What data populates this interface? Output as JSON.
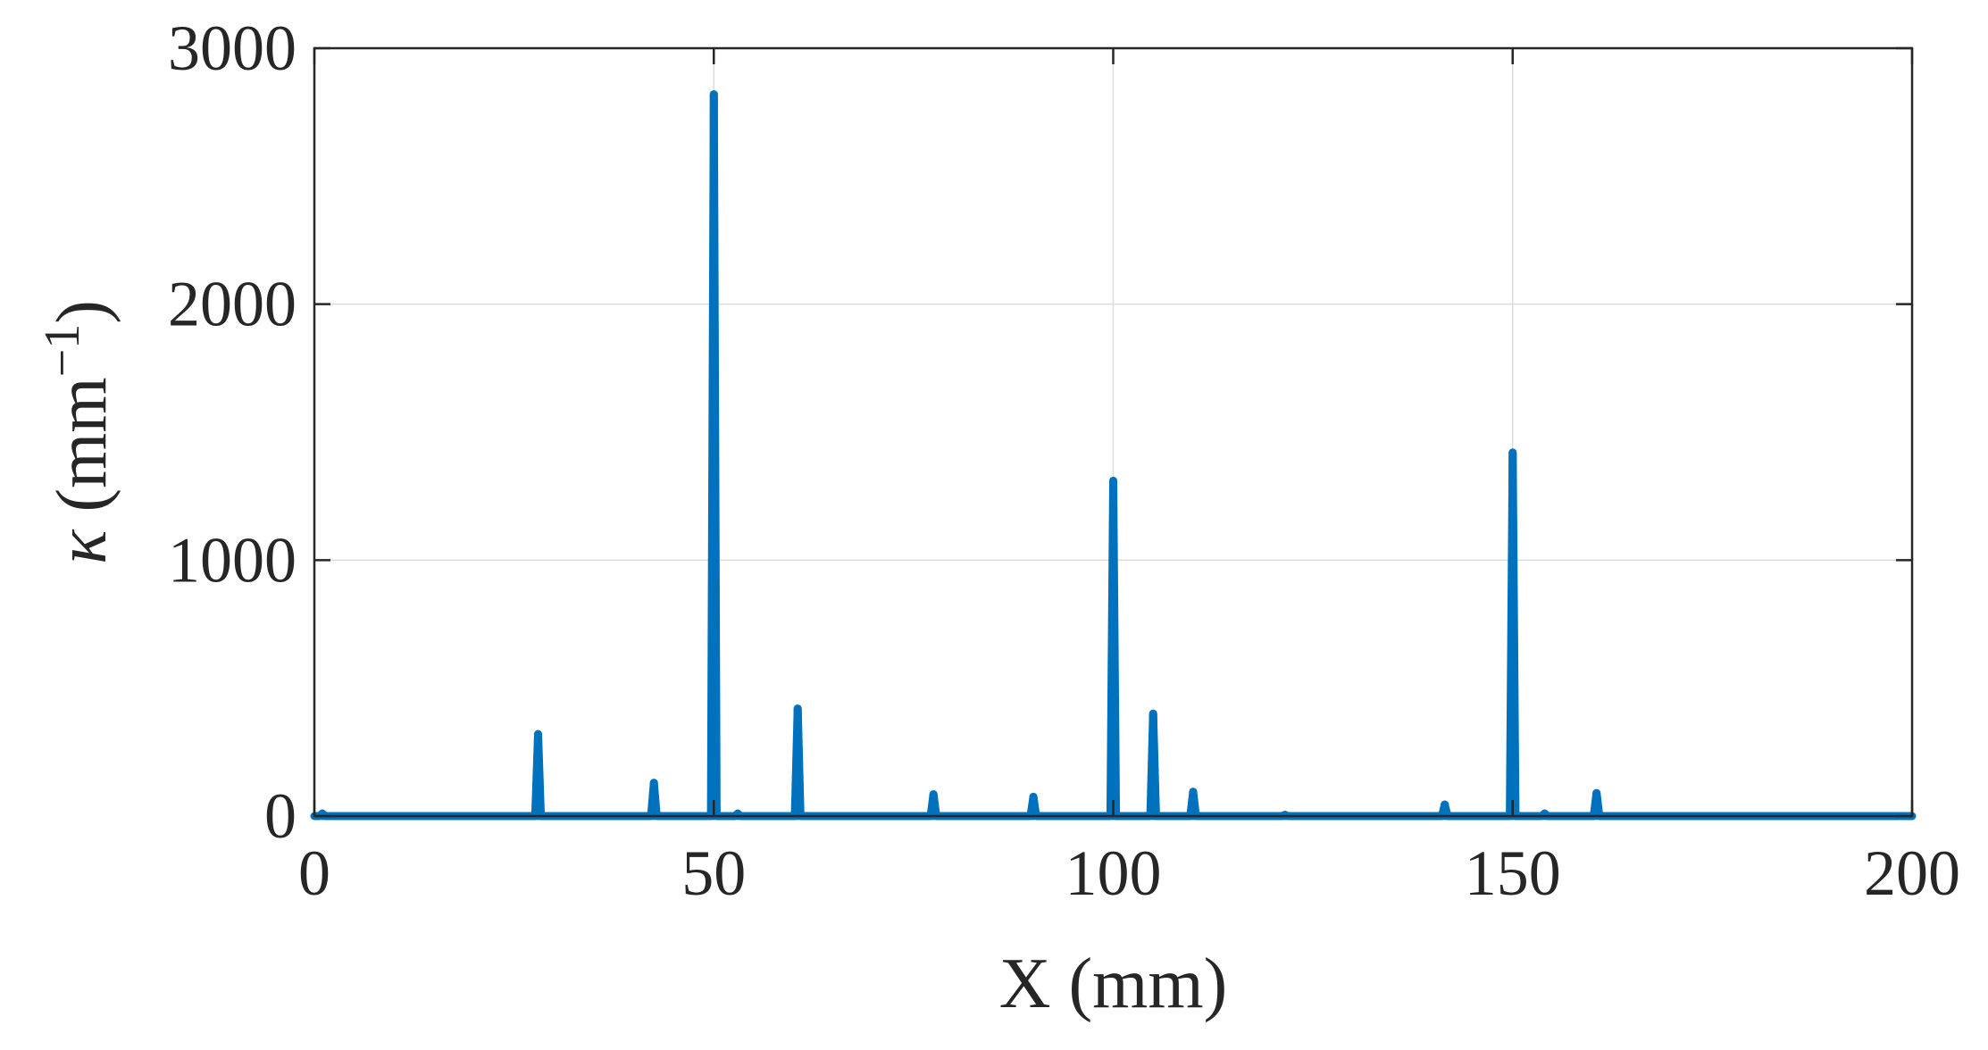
{
  "chart_data": {
    "type": "line",
    "xlabel": "X (mm)",
    "ylabel_symbol": "κ",
    "ylabel_unit_open": " (mm",
    "ylabel_exponent": "−1",
    "ylabel_unit_close": ")",
    "xlim": [
      0,
      200
    ],
    "ylim": [
      0,
      3000
    ],
    "xticks": [
      0,
      50,
      100,
      150,
      200
    ],
    "xtick_labels": [
      "0",
      "50",
      "100",
      "150",
      "200"
    ],
    "yticks": [
      0,
      1000,
      2000,
      3000
    ],
    "ytick_labels": [
      "0",
      "1000",
      "2000",
      "3000"
    ],
    "grid": true,
    "series": [
      {
        "color": "#0072BD",
        "baseline": 0,
        "spikes": [
          {
            "x": 1,
            "y": 10
          },
          {
            "x": 28,
            "y": 320
          },
          {
            "x": 42.5,
            "y": 130
          },
          {
            "x": 50,
            "y": 2820
          },
          {
            "x": 53,
            "y": 10
          },
          {
            "x": 60.5,
            "y": 420
          },
          {
            "x": 77.5,
            "y": 85
          },
          {
            "x": 90,
            "y": 75
          },
          {
            "x": 100,
            "y": 1310
          },
          {
            "x": 105,
            "y": 400
          },
          {
            "x": 110,
            "y": 95
          },
          {
            "x": 121.5,
            "y": 5
          },
          {
            "x": 141.5,
            "y": 45
          },
          {
            "x": 150,
            "y": 1420
          },
          {
            "x": 154,
            "y": 10
          },
          {
            "x": 160.5,
            "y": 90
          }
        ]
      }
    ]
  }
}
